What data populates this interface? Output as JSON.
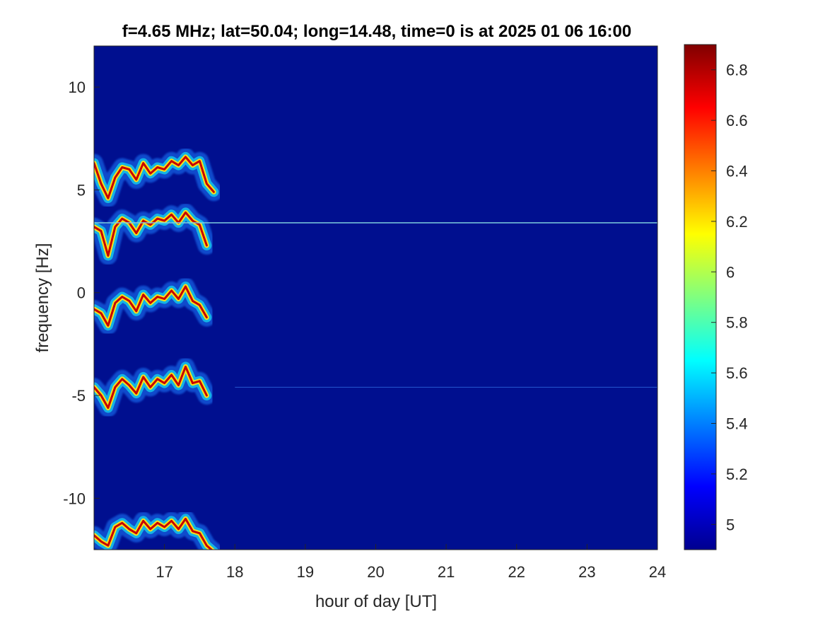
{
  "chart_data": {
    "type": "heatmap",
    "title": "f=4.65 MHz;  lat=50.04; long=14.48, time=0 is at 2025 01 06 16:00",
    "xlabel": "hour of day [UT]",
    "ylabel": "frequency [Hz]",
    "xlim": [
      16,
      24
    ],
    "ylim": [
      -12.5,
      12
    ],
    "xticks": [
      17,
      18,
      19,
      20,
      21,
      22,
      23,
      24
    ],
    "yticks": [
      -10,
      -5,
      0,
      5,
      10
    ],
    "colorbar": {
      "clim": [
        4.9,
        6.9
      ],
      "ticks": [
        5,
        5.2,
        5.4,
        5.6,
        5.8,
        6,
        6.2,
        6.4,
        6.6,
        6.8
      ],
      "colormap": "jet",
      "background_color": "#000f8f"
    },
    "features": [
      {
        "name": "Doppler trace +6 Hz",
        "x": [
          16.0,
          16.1,
          16.2,
          16.3,
          16.4,
          16.5,
          16.6,
          16.7,
          16.8,
          16.9,
          17.0,
          17.1,
          17.2,
          17.3,
          17.4,
          17.5,
          17.6,
          17.7
        ],
        "y": [
          6.3,
          5.3,
          4.6,
          5.6,
          6.1,
          6.0,
          5.5,
          6.3,
          5.8,
          6.1,
          6.0,
          6.4,
          6.2,
          6.6,
          6.2,
          6.4,
          5.3,
          4.9
        ]
      },
      {
        "name": "Doppler trace +3.5 Hz",
        "x": [
          16.0,
          16.1,
          16.2,
          16.3,
          16.4,
          16.5,
          16.6,
          16.7,
          16.8,
          16.9,
          17.0,
          17.1,
          17.2,
          17.3,
          17.4,
          17.5,
          17.6
        ],
        "y": [
          3.2,
          3.0,
          1.8,
          3.2,
          3.6,
          3.4,
          2.9,
          3.5,
          3.3,
          3.6,
          3.5,
          3.8,
          3.4,
          3.9,
          3.5,
          3.3,
          2.3
        ]
      },
      {
        "name": "Doppler trace 0 Hz",
        "x": [
          16.0,
          16.1,
          16.2,
          16.3,
          16.4,
          16.5,
          16.6,
          16.7,
          16.8,
          16.9,
          17.0,
          17.1,
          17.2,
          17.3,
          17.4,
          17.5,
          17.6
        ],
        "y": [
          -0.8,
          -1.0,
          -1.6,
          -0.5,
          -0.2,
          -0.4,
          -0.9,
          -0.1,
          -0.5,
          -0.2,
          -0.3,
          0.1,
          -0.3,
          0.3,
          -0.4,
          -0.6,
          -1.2
        ]
      },
      {
        "name": "Doppler trace -4.7 Hz",
        "x": [
          16.0,
          16.1,
          16.2,
          16.3,
          16.4,
          16.5,
          16.6,
          16.7,
          16.8,
          16.9,
          17.0,
          17.1,
          17.2,
          17.3,
          17.4,
          17.5,
          17.6
        ],
        "y": [
          -4.6,
          -5.0,
          -5.6,
          -4.6,
          -4.2,
          -4.5,
          -4.9,
          -4.1,
          -4.6,
          -4.2,
          -4.4,
          -4.0,
          -4.5,
          -3.6,
          -4.4,
          -4.3,
          -5.0
        ]
      },
      {
        "name": "Doppler trace -11.5 Hz",
        "x": [
          16.0,
          16.1,
          16.2,
          16.3,
          16.4,
          16.5,
          16.6,
          16.7,
          16.8,
          16.9,
          17.0,
          17.1,
          17.2,
          17.3,
          17.4,
          17.5,
          17.6,
          17.7
        ],
        "y": [
          -11.8,
          -12.1,
          -12.3,
          -11.4,
          -11.2,
          -11.5,
          -11.7,
          -11.1,
          -11.5,
          -11.2,
          -11.4,
          -11.1,
          -11.5,
          -11.0,
          -11.6,
          -11.7,
          -12.3,
          -12.6
        ]
      },
      {
        "name": "carrier line",
        "x": [
          16.0,
          24.0
        ],
        "y": [
          3.4,
          3.4
        ]
      },
      {
        "name": "faint line",
        "x": [
          18.0,
          24.0
        ],
        "y": [
          -4.6,
          -4.6
        ]
      }
    ]
  }
}
